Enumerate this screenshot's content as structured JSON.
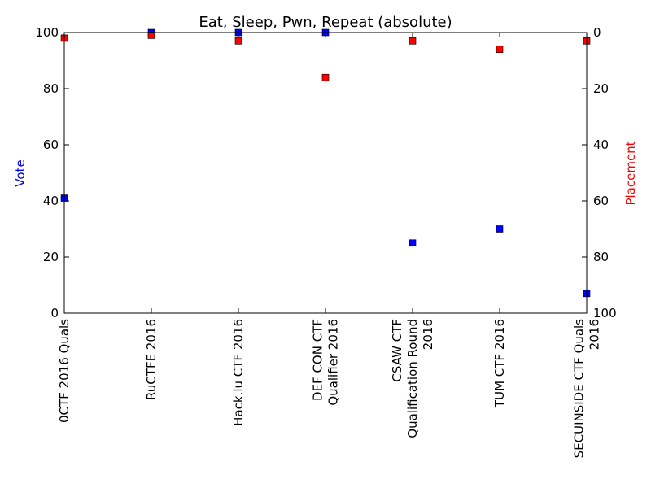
{
  "chart_data": {
    "type": "scatter",
    "title": "Eat, Sleep, Pwn, Repeat (absolute)",
    "ylabel": "Vote",
    "y2label": "Placement",
    "ylim": [
      0,
      100
    ],
    "y2lim": [
      100,
      0
    ],
    "yticks": [
      "0",
      "20",
      "40",
      "60",
      "80",
      "100"
    ],
    "y2ticks": [
      "0",
      "20",
      "40",
      "60",
      "80",
      "100"
    ],
    "categories": [
      [
        "0CTF 2016 Quals"
      ],
      [
        "RuCTFE 2016"
      ],
      [
        "Hack.lu CTF 2016"
      ],
      [
        "DEF CON CTF",
        "Qualifier 2016"
      ],
      [
        "CSAW CTF",
        "Qualification Round",
        "2016"
      ],
      [
        "TUM CTF 2016"
      ],
      [
        "SECUINSIDE CTF Quals",
        "2016"
      ]
    ],
    "series": [
      {
        "name": "Vote",
        "axis": "left",
        "color": "#0000ff",
        "marker": "square",
        "values": [
          41,
          100,
          100,
          100,
          25,
          30,
          7
        ]
      },
      {
        "name": "Placement",
        "axis": "right",
        "color": "#ff0000",
        "marker": "square",
        "values": [
          2,
          1,
          3,
          16,
          3,
          6,
          3
        ]
      }
    ],
    "grid": false,
    "colors": {
      "vote": "#0000ff",
      "placement": "#ff0000",
      "axis": "#000000"
    }
  }
}
